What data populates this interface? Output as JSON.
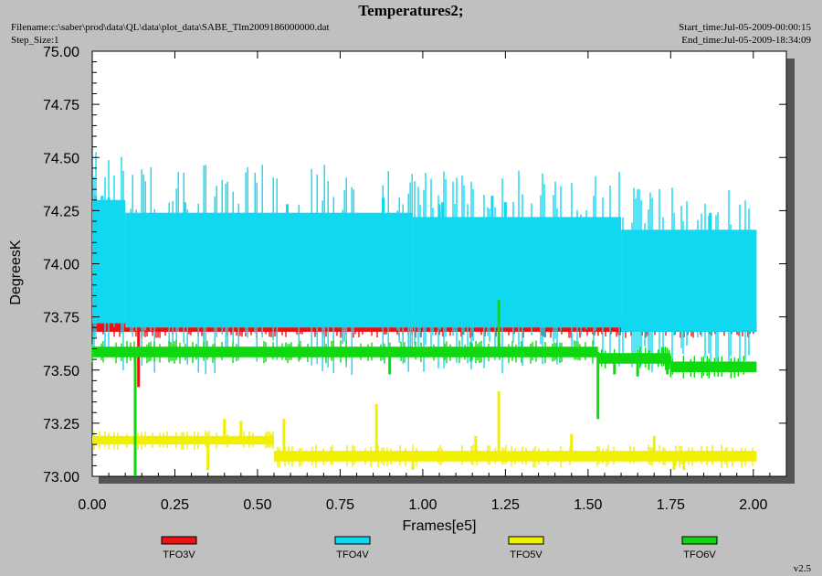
{
  "header": {
    "title": "Temperatures2;",
    "filename": "Filename:c:\\saber\\prod\\data\\QL\\data\\plot_data\\SABE_Tlm2009186000000.dat",
    "step_size": "Step_Size:1",
    "start_time": "Start_time:Jul-05-2009-00:00:15",
    "end_time": "End_time:Jul-05-2009-18:34:09"
  },
  "version": "v2.5",
  "colors": {
    "plot_bg": "#ffffff",
    "page_bg": "#c0c0c0",
    "shadow": "#555555"
  },
  "chart_data": {
    "type": "line",
    "xlabel": "Frames[e5]",
    "ylabel": "DegreesK",
    "xlim": [
      0,
      2.1
    ],
    "ylim": [
      73.0,
      75.0
    ],
    "x_ticks": [
      "0.00",
      "0.25",
      "0.50",
      "0.75",
      "1.00",
      "1.25",
      "1.50",
      "1.75",
      "2.00"
    ],
    "y_ticks": [
      "73.00",
      "73.25",
      "73.50",
      "73.75",
      "74.00",
      "74.25",
      "74.50",
      "74.75",
      "75.00"
    ],
    "series": [
      {
        "name": "TFO3V",
        "color": "#ee1111",
        "x_range": [
          0.0,
          2.01
        ],
        "band": [
          73.68,
          73.73
        ],
        "spikes": [
          [
            0.14,
            73.42
          ],
          [
            0.23,
            73.82
          ],
          [
            0.29,
            73.88
          ],
          [
            0.6,
            73.78
          ],
          [
            0.89,
            73.77
          ],
          [
            1.0,
            73.83
          ],
          [
            1.36,
            73.75
          ],
          [
            1.38,
            73.74
          ],
          [
            1.4,
            73.79
          ],
          [
            1.56,
            73.82
          ],
          [
            2.0,
            73.77
          ]
        ]
      },
      {
        "name": "TFO4V",
        "color": "#10d8f0",
        "x_range": [
          0.0,
          2.01
        ],
        "segments": [
          {
            "x": [
              0.0,
              0.1
            ],
            "band": [
              73.72,
              74.3
            ]
          },
          {
            "x": [
              0.1,
              0.97
            ],
            "band": [
              73.7,
              74.24
            ]
          },
          {
            "x": [
              0.97,
              1.6
            ],
            "band": [
              73.7,
              74.22
            ]
          },
          {
            "x": [
              1.6,
              2.01
            ],
            "band": [
              73.68,
              74.16
            ]
          }
        ],
        "spikes": [
          [
            0.01,
            74.32
          ],
          [
            0.03,
            74.32
          ],
          [
            0.05,
            74.31
          ],
          [
            0.28,
            74.29
          ],
          [
            0.59,
            74.28
          ],
          [
            0.88,
            74.31
          ],
          [
            1.05,
            74.28
          ],
          [
            1.06,
            74.29
          ],
          [
            1.21,
            74.32
          ],
          [
            1.25,
            74.29
          ],
          [
            1.87,
            74.24
          ]
        ]
      },
      {
        "name": "TFO5V",
        "color": "#f0f000",
        "x_range": [
          0.0,
          2.01
        ],
        "segments": [
          {
            "x": [
              0.0,
              0.55
            ],
            "band": [
              73.15,
              73.19
            ]
          },
          {
            "x": [
              0.55,
              2.01
            ],
            "band": [
              73.07,
              73.12
            ]
          }
        ],
        "spikes": [
          [
            0.13,
            73.02
          ],
          [
            0.35,
            73.03
          ],
          [
            0.4,
            73.27
          ],
          [
            0.45,
            73.26
          ],
          [
            0.58,
            73.27
          ],
          [
            0.86,
            73.34
          ],
          [
            0.97,
            73.03
          ],
          [
            1.16,
            73.19
          ],
          [
            1.23,
            73.4
          ],
          [
            1.45,
            73.2
          ],
          [
            1.7,
            73.19
          ],
          [
            1.76,
            73.03
          ],
          [
            1.79,
            73.03
          ]
        ]
      },
      {
        "name": "TFO6V",
        "color": "#10d810",
        "x_range": [
          0.0,
          2.01
        ],
        "segments": [
          {
            "x": [
              0.0,
              1.53
            ],
            "band": [
              73.56,
              73.61
            ]
          },
          {
            "x": [
              1.53,
              1.75
            ],
            "band": [
              73.53,
              73.58
            ]
          },
          {
            "x": [
              1.75,
              2.01
            ],
            "band": [
              73.49,
              73.54
            ]
          }
        ],
        "spikes": [
          [
            0.13,
            73.0
          ],
          [
            0.9,
            73.48
          ],
          [
            1.23,
            73.83
          ],
          [
            1.53,
            73.27
          ],
          [
            1.58,
            73.48
          ],
          [
            1.65,
            73.47
          ],
          [
            1.74,
            73.48
          ]
        ]
      }
    ],
    "legend_position": "bottom"
  }
}
